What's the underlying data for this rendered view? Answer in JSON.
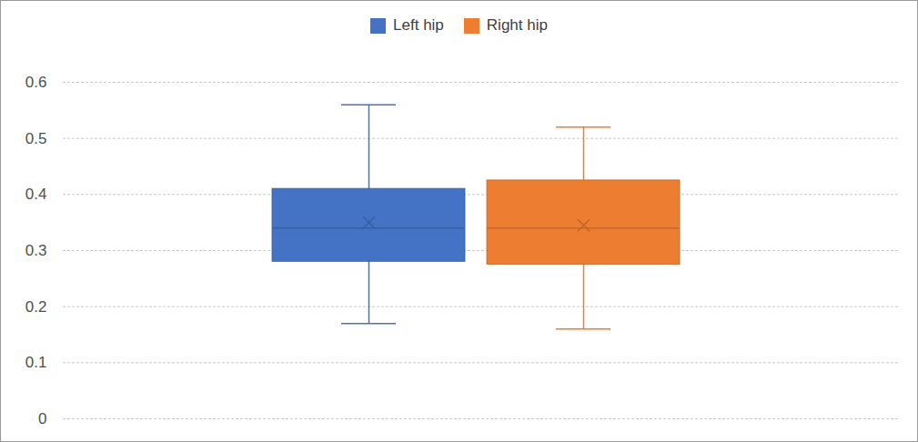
{
  "chart_data": {
    "type": "box",
    "series": [
      {
        "name": "Left hip",
        "color": "#4472c4",
        "min": 0.17,
        "q1": 0.28,
        "median": 0.34,
        "q3": 0.41,
        "max": 0.56,
        "mean": 0.35
      },
      {
        "name": "Right hip",
        "color": "#ed7d31",
        "min": 0.16,
        "q1": 0.275,
        "median": 0.34,
        "q3": 0.425,
        "max": 0.52,
        "mean": 0.345
      }
    ],
    "ylim": [
      0,
      0.6
    ],
    "yticks": [
      0,
      0.1,
      0.2,
      0.3,
      0.4,
      0.5,
      0.6
    ],
    "grid": true,
    "legend": "top",
    "tick_labels": "y",
    "marker": "x"
  }
}
